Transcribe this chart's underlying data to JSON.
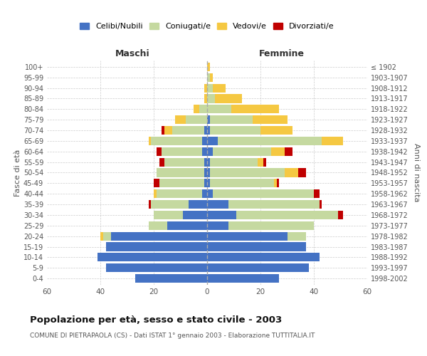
{
  "age_groups": [
    "0-4",
    "5-9",
    "10-14",
    "15-19",
    "20-24",
    "25-29",
    "30-34",
    "35-39",
    "40-44",
    "45-49",
    "50-54",
    "55-59",
    "60-64",
    "65-69",
    "70-74",
    "75-79",
    "80-84",
    "85-89",
    "90-94",
    "95-99",
    "100+"
  ],
  "birth_years": [
    "1998-2002",
    "1993-1997",
    "1988-1992",
    "1983-1987",
    "1978-1982",
    "1973-1977",
    "1968-1972",
    "1963-1967",
    "1958-1962",
    "1953-1957",
    "1948-1952",
    "1943-1947",
    "1938-1942",
    "1933-1937",
    "1928-1932",
    "1923-1927",
    "1918-1922",
    "1913-1917",
    "1908-1912",
    "1903-1907",
    "≤ 1902"
  ],
  "male_celibe": [
    27,
    38,
    41,
    38,
    36,
    15,
    9,
    7,
    2,
    1,
    1,
    1,
    2,
    2,
    1,
    0,
    0,
    0,
    0,
    0,
    0
  ],
  "male_coniugato": [
    0,
    0,
    0,
    0,
    3,
    7,
    11,
    14,
    17,
    17,
    18,
    15,
    15,
    19,
    12,
    8,
    3,
    0,
    0,
    0,
    0
  ],
  "male_vedovo": [
    0,
    0,
    0,
    0,
    1,
    0,
    0,
    0,
    1,
    0,
    0,
    0,
    0,
    1,
    3,
    4,
    2,
    1,
    1,
    0,
    0
  ],
  "male_divorziato": [
    0,
    0,
    0,
    0,
    0,
    0,
    0,
    1,
    0,
    2,
    0,
    2,
    2,
    0,
    1,
    0,
    0,
    0,
    0,
    0,
    0
  ],
  "female_celibe": [
    27,
    38,
    42,
    37,
    30,
    8,
    11,
    8,
    2,
    1,
    1,
    1,
    2,
    4,
    1,
    1,
    0,
    0,
    0,
    0,
    0
  ],
  "female_coniugata": [
    0,
    0,
    0,
    0,
    7,
    32,
    38,
    34,
    38,
    24,
    28,
    18,
    22,
    39,
    19,
    16,
    9,
    3,
    2,
    1,
    0
  ],
  "female_vedova": [
    0,
    0,
    0,
    0,
    0,
    0,
    0,
    0,
    0,
    1,
    5,
    2,
    5,
    8,
    12,
    13,
    18,
    10,
    5,
    1,
    1
  ],
  "female_divorziata": [
    0,
    0,
    0,
    0,
    0,
    0,
    2,
    1,
    2,
    1,
    3,
    1,
    3,
    0,
    0,
    0,
    0,
    0,
    0,
    0,
    0
  ],
  "colors": {
    "celibe": "#4472c4",
    "coniugato": "#c5d9a0",
    "vedovo": "#f5c842",
    "divorziato": "#c00000"
  },
  "title": "Popolazione per età, sesso e stato civile - 2003",
  "subtitle": "COMUNE DI PIETRAPAOLA (CS) - Dati ISTAT 1° gennaio 2003 - Elaborazione TUTTITALIA.IT",
  "xlabel_left": "Maschi",
  "xlabel_right": "Femmine",
  "ylabel_left": "Fasce di età",
  "ylabel_right": "Anni di nascita",
  "xlim": 60,
  "bg_color": "#ffffff",
  "grid_color": "#cccccc",
  "legend_labels": [
    "Celibi/Nubili",
    "Coniugati/e",
    "Vedovi/e",
    "Divorziati/e"
  ]
}
